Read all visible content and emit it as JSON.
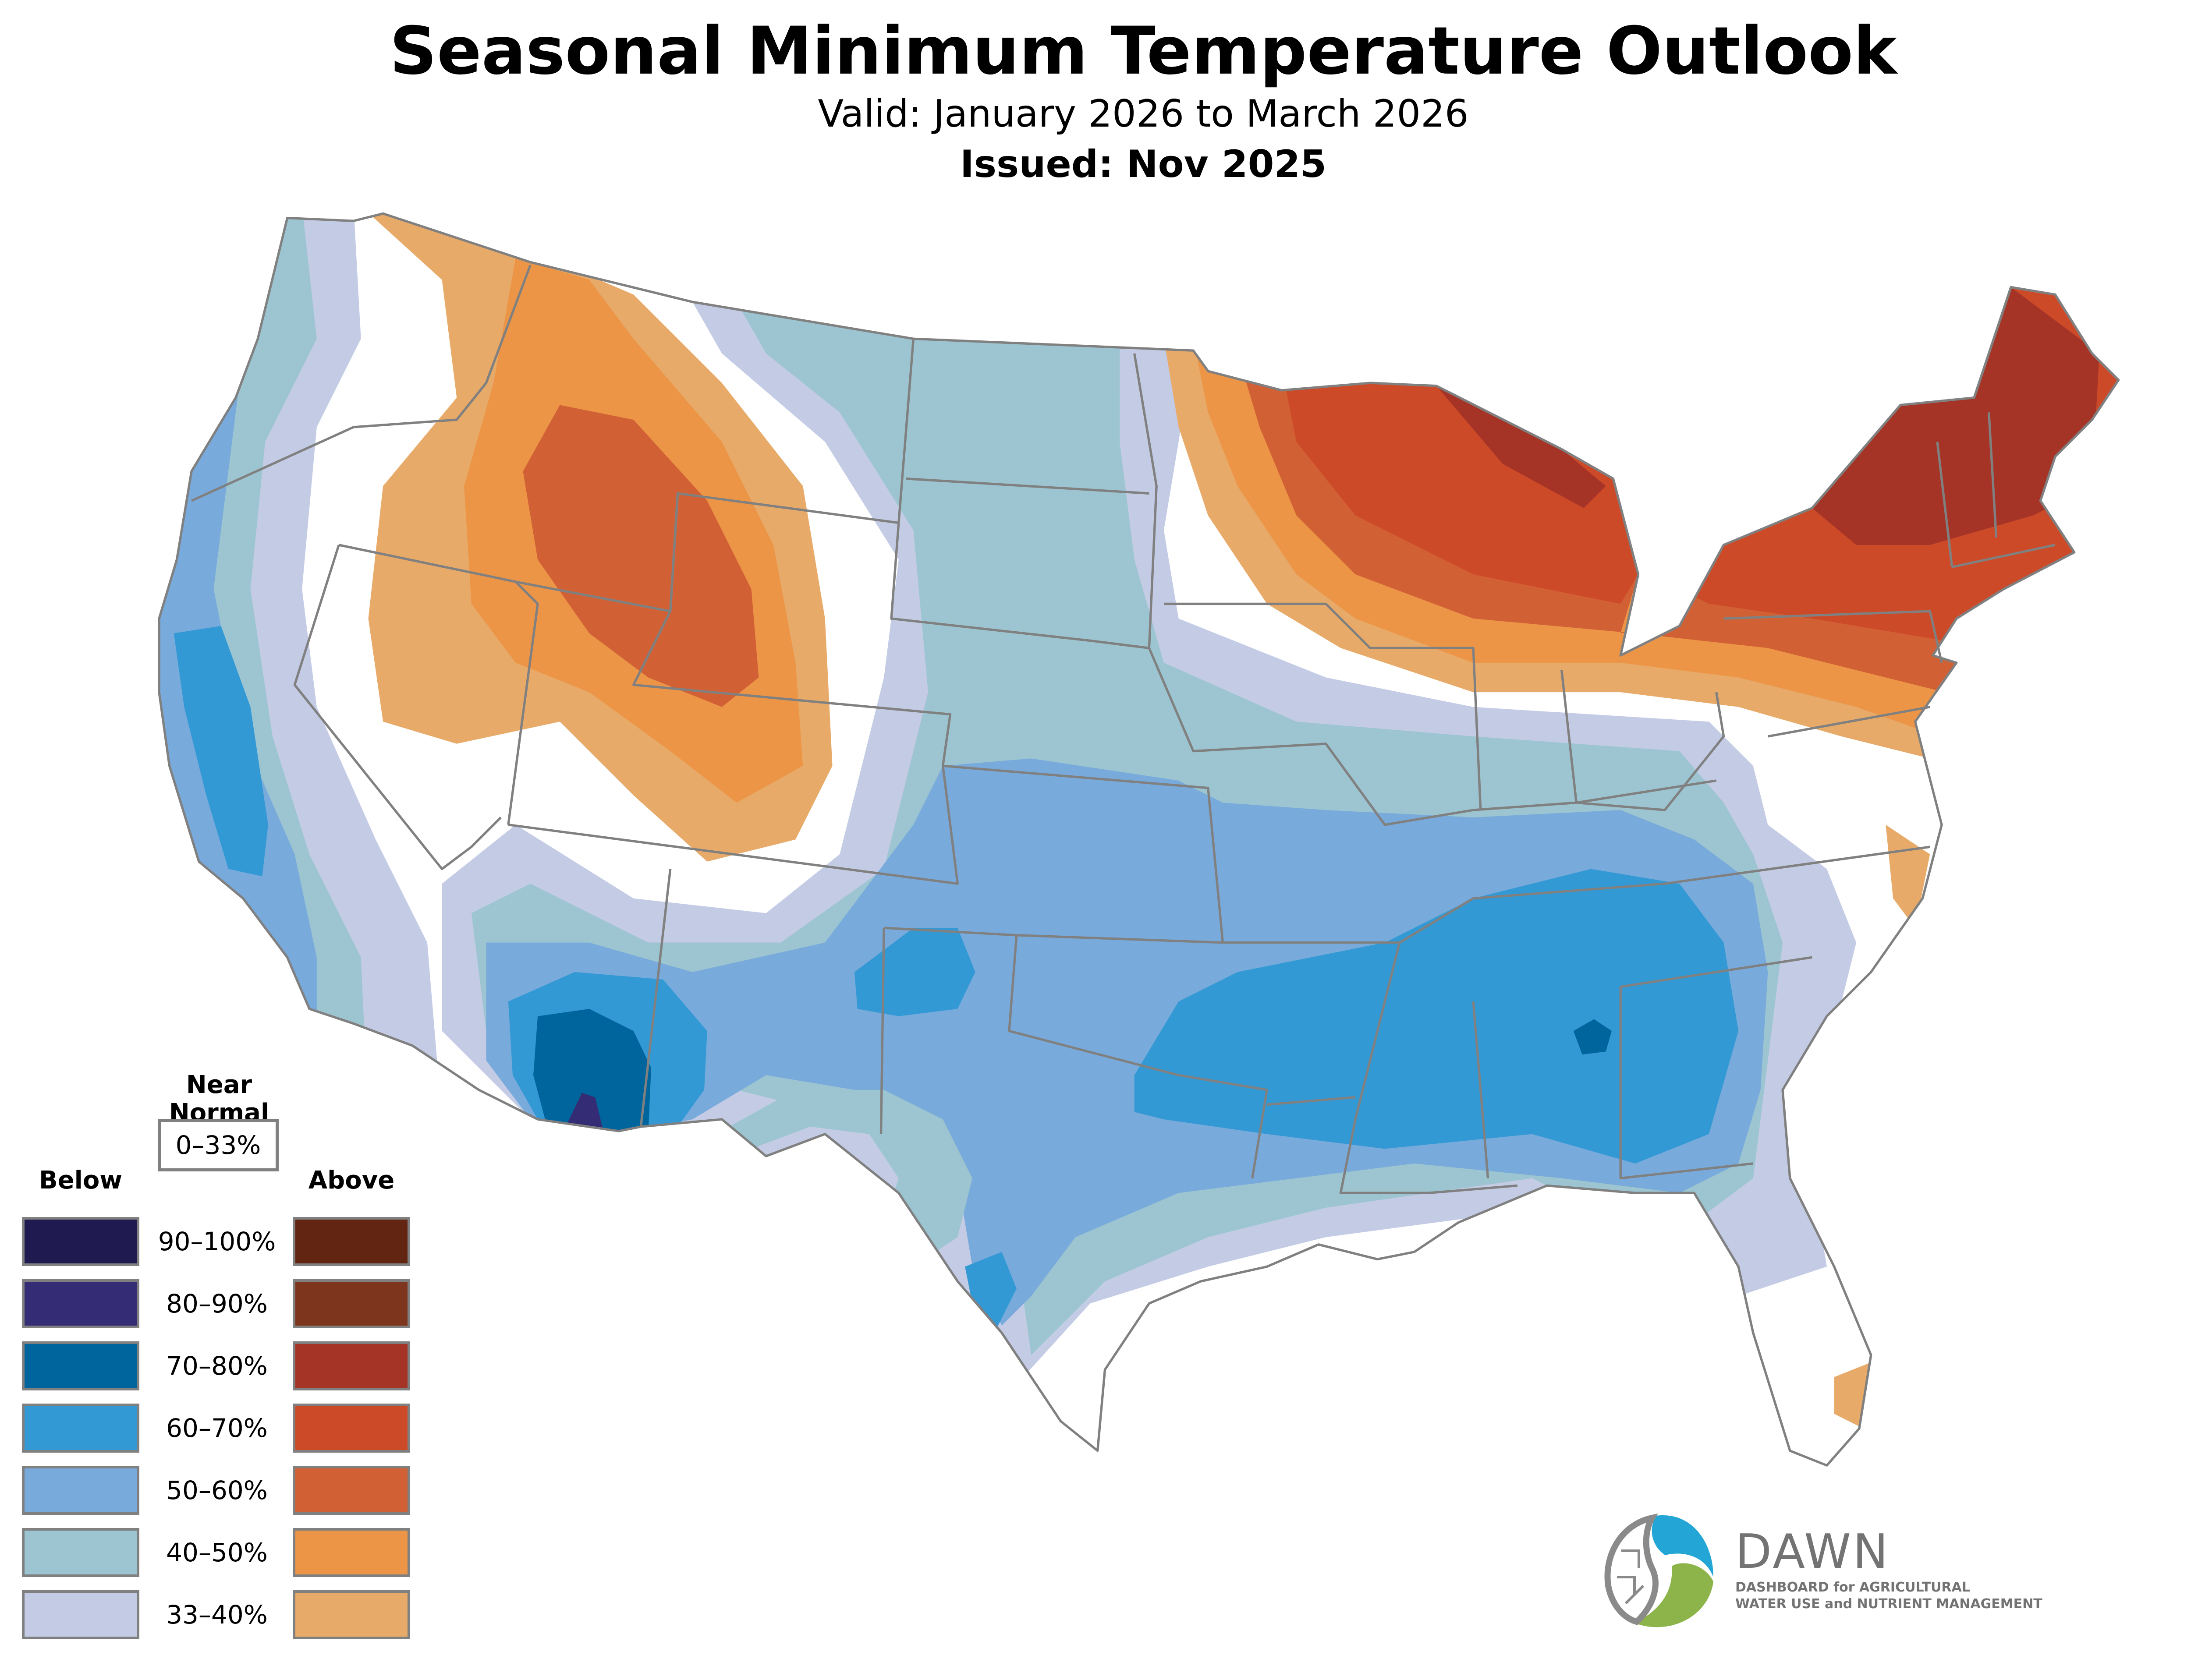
{
  "header": {
    "title": "Seasonal Minimum Temperature Outlook",
    "valid": "Valid: January 2026 to March 2026",
    "issued": "Issued: Nov 2025"
  },
  "legend": {
    "near_normal_title_1": "Near",
    "near_normal_title_2": "Normal",
    "near_normal_range": "0–33%",
    "below_title": "Below",
    "above_title": "Above",
    "ranges": [
      "90–100%",
      "80–90%",
      "70–80%",
      "60–70%",
      "50–60%",
      "40–50%",
      "33–40%"
    ],
    "below_colors": [
      "#1f1a4f",
      "#342c74",
      "#00659c",
      "#3399d5",
      "#78aadb",
      "#9cc5d1",
      "#c4cbe5"
    ],
    "above_colors": [
      "#612511",
      "#7e351d",
      "#a63426",
      "#cd4a29",
      "#d26035",
      "#ec9547",
      "#e8aa68"
    ]
  },
  "logo": {
    "name": "DAWN",
    "subtitle_1": "DASHBOARD for AGRICULTURAL",
    "subtitle_2": "WATER USE and NUTRIENT MANAGEMENT"
  },
  "colors": {
    "border": "#808080",
    "logo_blue": "#23a6d5",
    "logo_green": "#8db44a",
    "logo_gray": "#737373"
  }
}
